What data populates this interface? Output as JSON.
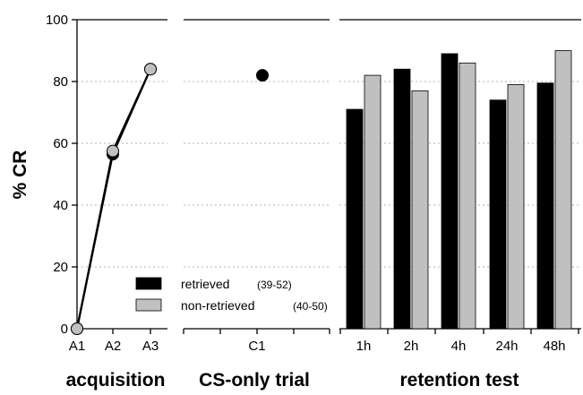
{
  "chart_data": {
    "type": "bar",
    "ylabel": "% CR",
    "ylim": [
      0,
      100
    ],
    "yticks": [
      "0",
      "20",
      "40",
      "60",
      "80",
      "100"
    ],
    "grid": "horizontal dotted",
    "colors": {
      "retrieved": "#000000",
      "non_retrieved": "#c0c0c0",
      "line": "#000000"
    },
    "legend": {
      "position": "bottom-left",
      "entries": [
        {
          "label": "retrieved",
          "n": "(39-52)",
          "color": "#000000"
        },
        {
          "label": "non-retrieved",
          "n": "(40-50)",
          "color": "#c0c0c0"
        }
      ]
    },
    "panels": [
      {
        "title": "acquisition",
        "type": "line",
        "categories": [
          "A1",
          "A2",
          "A3"
        ],
        "series": [
          {
            "name": "retrieved",
            "values": [
              0,
              56.5,
              84
            ]
          },
          {
            "name": "non-retrieved",
            "values": [
              0,
              57.5,
              84
            ]
          }
        ]
      },
      {
        "title": "CS-only trial",
        "type": "scatter",
        "categories": [
          "C1"
        ],
        "series": [
          {
            "name": "retrieved",
            "values": [
              82
            ]
          }
        ]
      },
      {
        "title": "retention test",
        "type": "bar",
        "categories": [
          "1h",
          "2h",
          "4h",
          "24h",
          "48h"
        ],
        "series": [
          {
            "name": "retrieved",
            "values": [
              71,
              84,
              89,
              74,
              79.5
            ]
          },
          {
            "name": "non-retrieved",
            "values": [
              82,
              77,
              86,
              79,
              90
            ]
          }
        ]
      }
    ]
  }
}
